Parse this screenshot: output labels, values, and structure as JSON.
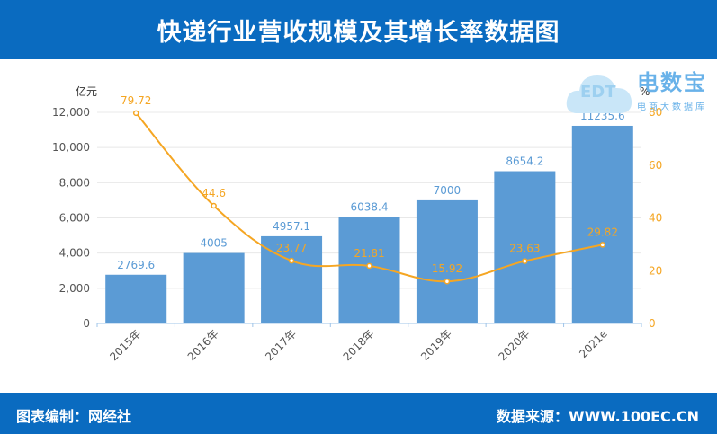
{
  "title": "快递行业营收规模及其增长率数据图",
  "footer": {
    "left": "图表编制：网经社",
    "right": "数据来源：WWW.100EC.CN"
  },
  "logo": {
    "name": "电数宝",
    "subtitle": "电商大数据库",
    "badge": "EDT"
  },
  "colors": {
    "header_bg": "#0a6bc0",
    "bar": "#5b9bd5",
    "line": "#f5a623",
    "bar_label": "#5b9bd5",
    "line_label": "#f5a623",
    "axis_text": "#555555",
    "grid": "#e8e8e8"
  },
  "chart_data": {
    "type": "bar",
    "categories": [
      "2015年",
      "2016年",
      "2017年",
      "2018年",
      "2019年",
      "2020年",
      "2021e"
    ],
    "series": [
      {
        "type": "bar",
        "axis": "left",
        "values": [
          2769.6,
          4005,
          4957.1,
          6038.4,
          7000,
          8654.2,
          11235.6
        ],
        "labels": [
          "2769.6",
          "4005",
          "4957.1",
          "6038.4",
          "7000",
          "8654.2",
          "11235.6"
        ]
      },
      {
        "type": "line",
        "axis": "right",
        "smooth": true,
        "values": [
          79.72,
          44.6,
          23.77,
          21.81,
          15.92,
          23.63,
          29.82
        ],
        "labels": [
          "79.72",
          "44.6",
          "23.77",
          "21.81",
          "15.92",
          "23.63",
          "29.82"
        ]
      }
    ],
    "y_left": {
      "unit_label": "亿元",
      "ylim": [
        0,
        12000
      ],
      "ticks": [
        0,
        2000,
        4000,
        6000,
        8000,
        10000,
        12000
      ],
      "tick_labels": [
        "0",
        "2,000",
        "4,000",
        "6,000",
        "8,000",
        "10,000",
        "12,000"
      ]
    },
    "y_right": {
      "unit_label": "%",
      "ylim": [
        0,
        80
      ],
      "ticks": [
        0,
        20,
        40,
        60,
        80
      ],
      "tick_labels": [
        "0",
        "20",
        "40",
        "60",
        "80"
      ]
    },
    "grid": true,
    "legend": "none"
  }
}
